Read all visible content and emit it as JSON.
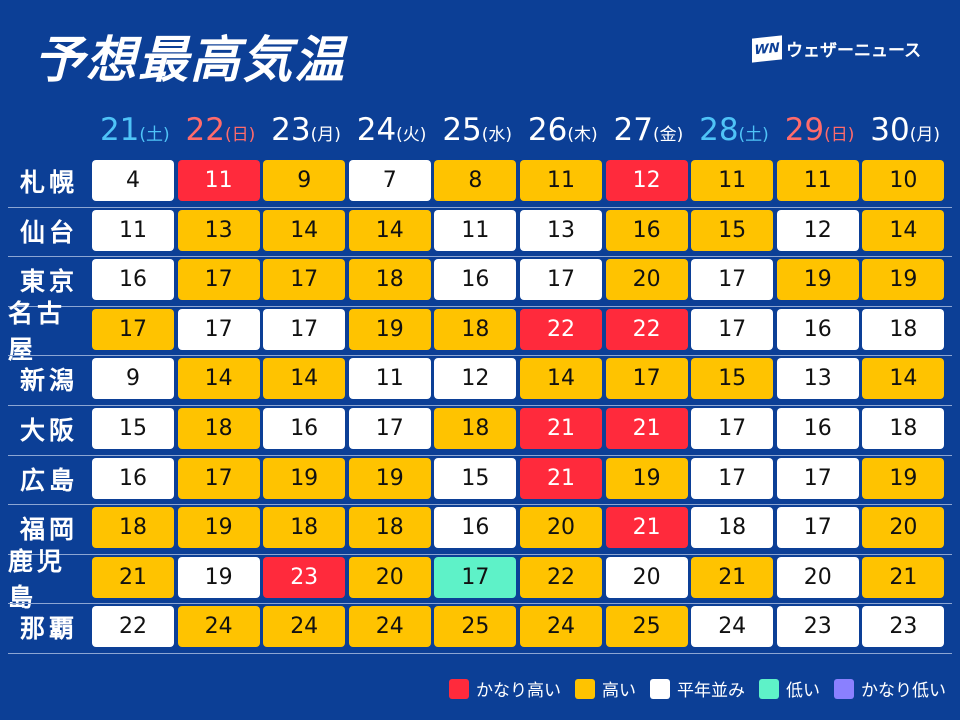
{
  "title": "予想最高気温",
  "logo": {
    "mark": "WN",
    "text": "ウェザーニュース"
  },
  "colors": {
    "very-high": "#ff2a3c",
    "high": "#ffc300",
    "normal": "#ffffff",
    "low": "#5ef2c8",
    "very-low": "#8a80ff",
    "saturday": "#4fc3f7",
    "sunday": "#ff6b6b",
    "background": "#0c3f96"
  },
  "days": [
    {
      "date": "21",
      "dow": "(土)",
      "type": "saturday"
    },
    {
      "date": "22",
      "dow": "(日)",
      "type": "sunday"
    },
    {
      "date": "23",
      "dow": "(月)",
      "type": "weekday"
    },
    {
      "date": "24",
      "dow": "(火)",
      "type": "weekday"
    },
    {
      "date": "25",
      "dow": "(水)",
      "type": "weekday"
    },
    {
      "date": "26",
      "dow": "(木)",
      "type": "weekday"
    },
    {
      "date": "27",
      "dow": "(金)",
      "type": "weekday"
    },
    {
      "date": "28",
      "dow": "(土)",
      "type": "saturday"
    },
    {
      "date": "29",
      "dow": "(日)",
      "type": "sunday"
    },
    {
      "date": "30",
      "dow": "(月)",
      "type": "weekday"
    }
  ],
  "cities": [
    {
      "name": "札幌",
      "temps": [
        4,
        11,
        9,
        7,
        8,
        11,
        12,
        11,
        11,
        10
      ],
      "levels": [
        "normal",
        "very-high",
        "high",
        "normal",
        "high",
        "high",
        "very-high",
        "high",
        "high",
        "high"
      ]
    },
    {
      "name": "仙台",
      "temps": [
        11,
        13,
        14,
        14,
        11,
        13,
        16,
        15,
        12,
        14
      ],
      "levels": [
        "normal",
        "high",
        "high",
        "high",
        "normal",
        "normal",
        "high",
        "high",
        "normal",
        "high"
      ]
    },
    {
      "name": "東京",
      "temps": [
        16,
        17,
        17,
        18,
        16,
        17,
        20,
        17,
        19,
        19
      ],
      "levels": [
        "normal",
        "high",
        "high",
        "high",
        "normal",
        "normal",
        "high",
        "normal",
        "high",
        "high"
      ]
    },
    {
      "name": "名古屋",
      "temps": [
        17,
        17,
        17,
        19,
        18,
        22,
        22,
        17,
        16,
        18
      ],
      "levels": [
        "high",
        "normal",
        "normal",
        "high",
        "high",
        "very-high",
        "very-high",
        "normal",
        "normal",
        "normal"
      ]
    },
    {
      "name": "新潟",
      "temps": [
        9,
        14,
        14,
        11,
        12,
        14,
        17,
        15,
        13,
        14
      ],
      "levels": [
        "normal",
        "high",
        "high",
        "normal",
        "normal",
        "high",
        "high",
        "high",
        "normal",
        "high"
      ]
    },
    {
      "name": "大阪",
      "temps": [
        15,
        18,
        16,
        17,
        18,
        21,
        21,
        17,
        16,
        18
      ],
      "levels": [
        "normal",
        "high",
        "normal",
        "normal",
        "high",
        "very-high",
        "very-high",
        "normal",
        "normal",
        "normal"
      ]
    },
    {
      "name": "広島",
      "temps": [
        16,
        17,
        19,
        19,
        15,
        21,
        19,
        17,
        17,
        19
      ],
      "levels": [
        "normal",
        "high",
        "high",
        "high",
        "normal",
        "very-high",
        "high",
        "normal",
        "normal",
        "high"
      ]
    },
    {
      "name": "福岡",
      "temps": [
        18,
        19,
        18,
        18,
        16,
        20,
        21,
        18,
        17,
        20
      ],
      "levels": [
        "high",
        "high",
        "high",
        "high",
        "normal",
        "high",
        "very-high",
        "normal",
        "normal",
        "high"
      ]
    },
    {
      "name": "鹿児島",
      "temps": [
        21,
        19,
        23,
        20,
        17,
        22,
        20,
        21,
        20,
        21
      ],
      "levels": [
        "high",
        "normal",
        "very-high",
        "high",
        "low",
        "high",
        "normal",
        "high",
        "normal",
        "high"
      ]
    },
    {
      "name": "那覇",
      "temps": [
        22,
        24,
        24,
        24,
        25,
        24,
        25,
        24,
        23,
        23
      ],
      "levels": [
        "normal",
        "high",
        "high",
        "high",
        "high",
        "high",
        "high",
        "normal",
        "normal",
        "normal"
      ]
    }
  ],
  "legend": [
    {
      "key": "very-high",
      "label": "かなり高い"
    },
    {
      "key": "high",
      "label": "高い"
    },
    {
      "key": "normal",
      "label": "平年並み"
    },
    {
      "key": "low",
      "label": "低い"
    },
    {
      "key": "very-low",
      "label": "かなり低い"
    }
  ]
}
